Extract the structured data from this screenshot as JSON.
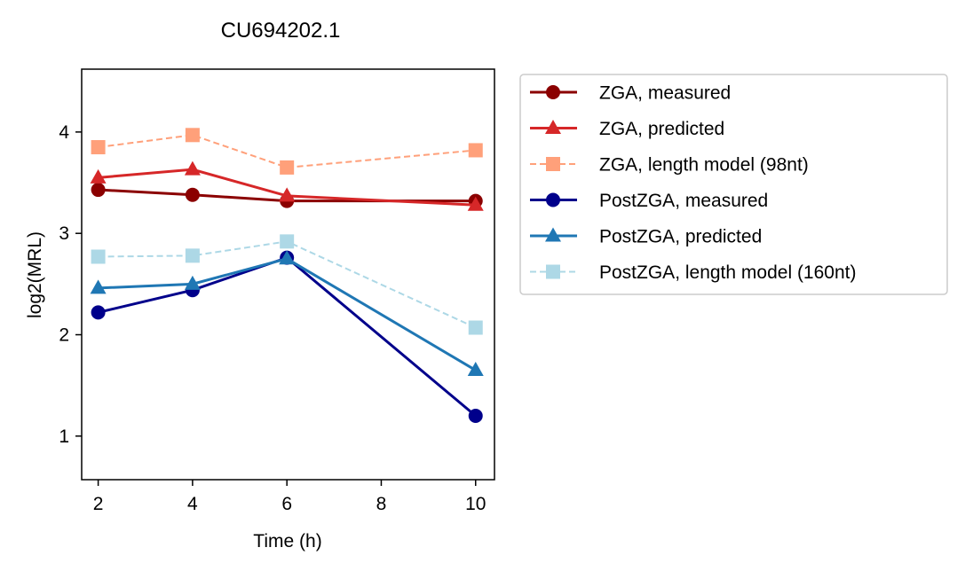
{
  "chart_data": {
    "type": "line",
    "title": "CU694202.1",
    "xlabel": "Time (h)",
    "ylabel": "log2(MRL)",
    "x": [
      2,
      4,
      6,
      10
    ],
    "xticks": [
      "2",
      "4",
      "6",
      "8",
      "10"
    ],
    "yticks": [
      "1",
      "2",
      "3",
      "4"
    ],
    "xlim": [
      1.65,
      10.4
    ],
    "ylim": [
      0.57,
      4.62
    ],
    "grid": false,
    "legend_position": "outside-right",
    "series": [
      {
        "name": "ZGA, measured",
        "values": [
          3.43,
          3.38,
          3.32,
          3.32
        ],
        "color": "#8b0000",
        "marker": "circle",
        "dashed": false
      },
      {
        "name": "ZGA, predicted",
        "values": [
          3.55,
          3.63,
          3.37,
          3.28
        ],
        "color": "#d62728",
        "marker": "triangle",
        "dashed": false
      },
      {
        "name": "ZGA, length model (98nt)",
        "values": [
          3.85,
          3.97,
          3.65,
          3.82
        ],
        "color": "#ffa07a",
        "marker": "square",
        "dashed": true
      },
      {
        "name": "PostZGA, measured",
        "values": [
          2.22,
          2.44,
          2.76,
          1.2
        ],
        "color": "#00008b",
        "marker": "circle",
        "dashed": false
      },
      {
        "name": "PostZGA, predicted",
        "values": [
          2.46,
          2.5,
          2.75,
          1.65
        ],
        "color": "#1f77b4",
        "marker": "triangle",
        "dashed": false
      },
      {
        "name": "PostZGA, length model (160nt)",
        "values": [
          2.77,
          2.78,
          2.92,
          2.07
        ],
        "color": "#add8e6",
        "marker": "square",
        "dashed": true
      }
    ]
  }
}
